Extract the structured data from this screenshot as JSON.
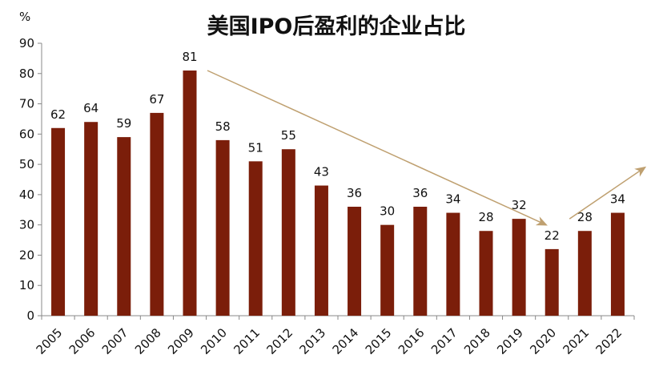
{
  "chart_data": {
    "type": "bar",
    "title": "美国IPO后盈利的企业占比",
    "ylabel": "%",
    "ylim": [
      0,
      90
    ],
    "yticks": [
      0,
      10,
      20,
      30,
      40,
      50,
      60,
      70,
      80,
      90
    ],
    "grid": false,
    "categories": [
      "2005",
      "2006",
      "2007",
      "2008",
      "2009",
      "2010",
      "2011",
      "2012",
      "2013",
      "2014",
      "2015",
      "2016",
      "2017",
      "2018",
      "2019",
      "2020",
      "2021",
      "2022"
    ],
    "values": [
      62,
      64,
      59,
      67,
      81,
      58,
      51,
      55,
      43,
      36,
      30,
      36,
      34,
      28,
      32,
      22,
      28,
      34
    ],
    "bar_color": "#7B1E0A",
    "annotations": [
      {
        "type": "trend-arrow",
        "from": {
          "x": "2009",
          "y": 81
        },
        "to": {
          "x": "2019",
          "y": 30
        }
      },
      {
        "type": "trend-arrow",
        "from": {
          "x": "2020",
          "y": 32
        },
        "to": {
          "x": "2022",
          "y": 49
        }
      }
    ],
    "arrow_color": "#BFA070"
  }
}
